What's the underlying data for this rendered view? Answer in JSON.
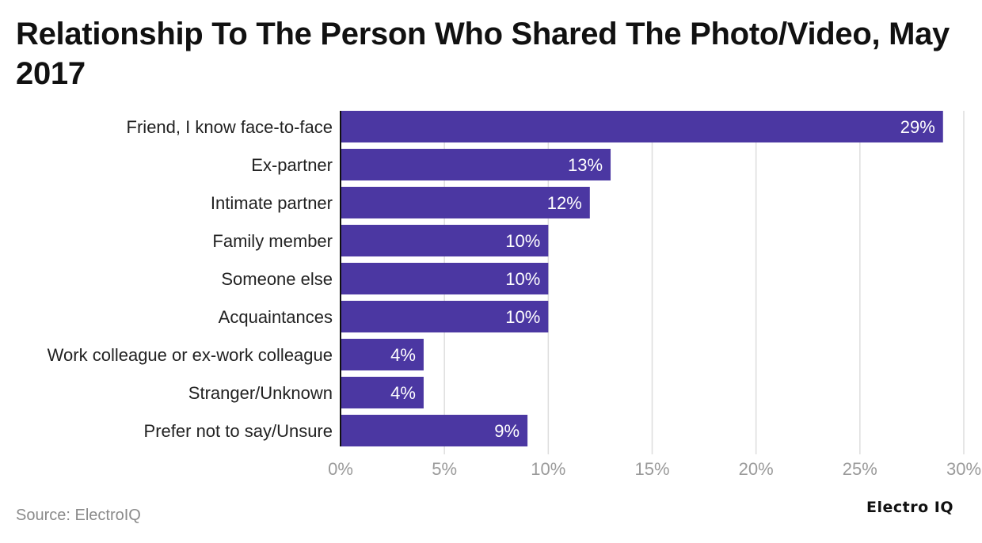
{
  "chart_data": {
    "type": "bar",
    "orientation": "horizontal",
    "title": "Relationship To The Person Who Shared The Photo/Video, May 2017",
    "categories": [
      "Friend, I know face-to-face",
      "Ex-partner",
      "Intimate partner",
      "Family member",
      "Someone else",
      "Acquaintances",
      "Work colleague or ex-work colleague",
      "Stranger/Unknown",
      "Prefer not to say/Unsure"
    ],
    "values": [
      29,
      13,
      12,
      10,
      10,
      10,
      4,
      4,
      9
    ],
    "value_labels": [
      "29%",
      "13%",
      "12%",
      "10%",
      "10%",
      "10%",
      "4%",
      "4%",
      "9%"
    ],
    "xlim": [
      0,
      30
    ],
    "xticks": [
      0,
      5,
      10,
      15,
      20,
      25,
      30
    ],
    "xtick_labels": [
      "0%",
      "5%",
      "10%",
      "15%",
      "20%",
      "25%",
      "30%"
    ],
    "grid": "vertical",
    "bar_color": "#4b37a2"
  },
  "footer": {
    "source": "Source: ElectroIQ",
    "brand": "Electro IQ"
  }
}
